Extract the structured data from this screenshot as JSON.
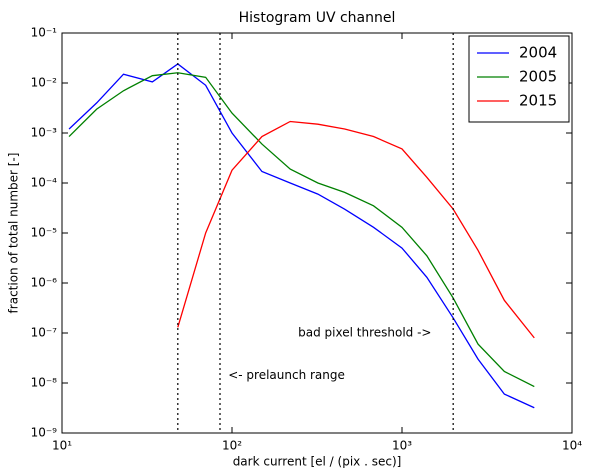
{
  "chart_data": {
    "type": "line",
    "title": "Histogram UV channel",
    "x_label": "dark current [el / (pix . sec)]",
    "y_label": "fraction of total number [-]",
    "x_scale": "log",
    "y_scale": "log",
    "xlim": [
      10,
      10000
    ],
    "xticks": [
      {
        "value": 10,
        "label": "10¹"
      },
      {
        "value": 100,
        "label": "10²"
      },
      {
        "value": 1000,
        "label": "10³"
      },
      {
        "value": 10000,
        "label": "10⁴"
      }
    ],
    "ylim": [
      1e-09,
      0.1
    ],
    "yticks": [
      {
        "value": 1e-09,
        "label": "10⁻⁹"
      },
      {
        "value": 1e-08,
        "label": "10⁻⁸"
      },
      {
        "value": 1e-07,
        "label": "10⁻⁷"
      },
      {
        "value": 1e-06,
        "label": "10⁻⁶"
      },
      {
        "value": 1e-05,
        "label": "10⁻⁵"
      },
      {
        "value": 0.0001,
        "label": "10⁻⁴"
      },
      {
        "value": 0.001,
        "label": "10⁻³"
      },
      {
        "value": 0.01,
        "label": "10⁻²"
      },
      {
        "value": 0.1,
        "label": "10⁻¹"
      }
    ],
    "grid": false,
    "legend": "upper right",
    "series": [
      {
        "name": "2004",
        "color": "#0000ff",
        "x": [
          11,
          16,
          23,
          34,
          48,
          70,
          100,
          150,
          220,
          320,
          460,
          680,
          1000,
          1400,
          2000,
          2800,
          4000,
          6000
        ],
        "values": [
          0.0012,
          0.004,
          0.015,
          0.0105,
          0.024,
          0.009,
          0.001,
          0.00017,
          0.0001,
          6e-05,
          3e-05,
          1.3e-05,
          5e-06,
          1.3e-06,
          2e-07,
          3e-08,
          6e-09,
          3.2e-09
        ]
      },
      {
        "name": "2005",
        "color": "#008000",
        "x": [
          11,
          16,
          23,
          34,
          48,
          70,
          100,
          150,
          220,
          320,
          460,
          680,
          1000,
          1400,
          2000,
          2800,
          4000,
          6000
        ],
        "values": [
          0.00085,
          0.003,
          0.007,
          0.014,
          0.016,
          0.013,
          0.0025,
          0.0006,
          0.00019,
          0.0001,
          6.5e-05,
          3.5e-05,
          1.3e-05,
          3.5e-06,
          5e-07,
          6e-08,
          1.7e-08,
          8.5e-09
        ]
      },
      {
        "name": "2015",
        "color": "#ff0000",
        "x": [
          48,
          70,
          100,
          150,
          220,
          320,
          460,
          680,
          1000,
          1400,
          2000,
          2800,
          4000,
          6000
        ],
        "values": [
          1.3e-07,
          1e-05,
          0.00018,
          0.00085,
          0.0017,
          0.0015,
          0.0012,
          0.00085,
          0.00048,
          0.00013,
          3e-05,
          4.5e-06,
          4.5e-07,
          8e-08
        ]
      }
    ],
    "vlines": [
      48,
      85,
      2000
    ],
    "annotations": [
      {
        "text": "<- prelaunch range",
        "x": 95,
        "y": 1.4e-08
      },
      {
        "text": "bad pixel threshold ->",
        "x": 245,
        "y": 1e-07
      }
    ]
  }
}
